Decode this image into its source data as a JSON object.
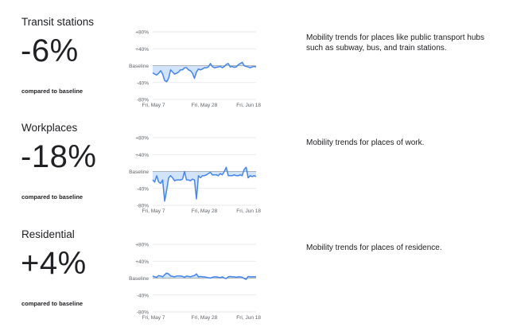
{
  "sections": [
    {
      "title": "Transit stations",
      "change": "-6%",
      "compared": "compared to baseline",
      "description": "Mobility trends for places like public transport hubs such as subway, bus, and train stations."
    },
    {
      "title": "Workplaces",
      "change": "-18%",
      "compared": "compared to baseline",
      "description": "Mobility trends for places of work."
    },
    {
      "title": "Residential",
      "change": "+4%",
      "compared": "compared to baseline",
      "description": "Mobility trends for places of residence."
    }
  ],
  "chart_data": [
    {
      "type": "area",
      "title": "Transit stations",
      "y_ticks": [
        "+80%",
        "+40%",
        "Baseline",
        "-40%",
        "-80%"
      ],
      "x_ticks": [
        "Fri, May 7",
        "Fri, May 28",
        "Fri, Jun 18"
      ],
      "ylim": [
        -80,
        80
      ],
      "x_start": "2021-05-07",
      "series": [
        {
          "values": [
            -17,
            -20,
            -22,
            -18,
            -12,
            -20,
            -35,
            -38,
            -30,
            -10,
            -15,
            -20,
            -18,
            -15,
            -10,
            -10,
            -5,
            -5,
            -10,
            -12,
            -18,
            -30,
            -15,
            -8,
            -10,
            -8,
            -5,
            -5,
            -3,
            5,
            -2,
            -5,
            -4,
            -3,
            -2,
            -5,
            -2,
            3,
            5,
            -3,
            -2,
            -4,
            -3,
            2,
            5,
            8,
            0,
            -2,
            -3,
            -5,
            -3,
            -2,
            -3
          ]
        }
      ],
      "colors": {
        "line": "#4285f4",
        "fill": "#d2e3fc"
      }
    },
    {
      "type": "area",
      "title": "Workplaces",
      "y_ticks": [
        "+80%",
        "+40%",
        "Baseline",
        "-40%",
        "-80%"
      ],
      "x_ticks": [
        "Fri, May 7",
        "Fri, May 28",
        "Fri, Jun 18"
      ],
      "ylim": [
        -80,
        80
      ],
      "x_start": "2021-05-07",
      "series": [
        {
          "values": [
            -20,
            -25,
            -10,
            -25,
            -28,
            -20,
            -70,
            -45,
            -15,
            -10,
            -15,
            -22,
            -20,
            -20,
            -20,
            -18,
            0,
            -20,
            -20,
            -22,
            -18,
            -20,
            -65,
            -10,
            -15,
            -10,
            -10,
            -8,
            -5,
            -2,
            -8,
            -8,
            -8,
            -10,
            -5,
            -8,
            0,
            10,
            -10,
            -10,
            -10,
            -8,
            -10,
            -10,
            -8,
            -10,
            5,
            10,
            -15,
            -10,
            -12,
            -10,
            -12
          ]
        }
      ],
      "colors": {
        "line": "#4285f4",
        "fill": "#d2e3fc"
      }
    },
    {
      "type": "area",
      "title": "Residential",
      "y_ticks": [
        "+80%",
        "+40%",
        "Baseline",
        "-40%",
        "-80%"
      ],
      "x_ticks": [
        "Fri, May 7",
        "Fri, May 28",
        "Fri, Jun 18"
      ],
      "ylim": [
        -80,
        80
      ],
      "x_start": "2021-05-07",
      "series": [
        {
          "values": [
            5,
            3,
            2,
            6,
            5,
            3,
            8,
            12,
            10,
            5,
            4,
            3,
            5,
            5,
            5,
            4,
            2,
            5,
            4,
            3,
            5,
            6,
            10,
            3,
            4,
            3,
            3,
            2,
            1,
            0,
            2,
            3,
            3,
            2,
            1,
            3,
            0,
            -1,
            3,
            4,
            3,
            3,
            2,
            3,
            3,
            2,
            -1,
            -3,
            4,
            3,
            3,
            3,
            3
          ]
        }
      ],
      "colors": {
        "line": "#4285f4",
        "fill": "#d2e3fc"
      }
    }
  ]
}
